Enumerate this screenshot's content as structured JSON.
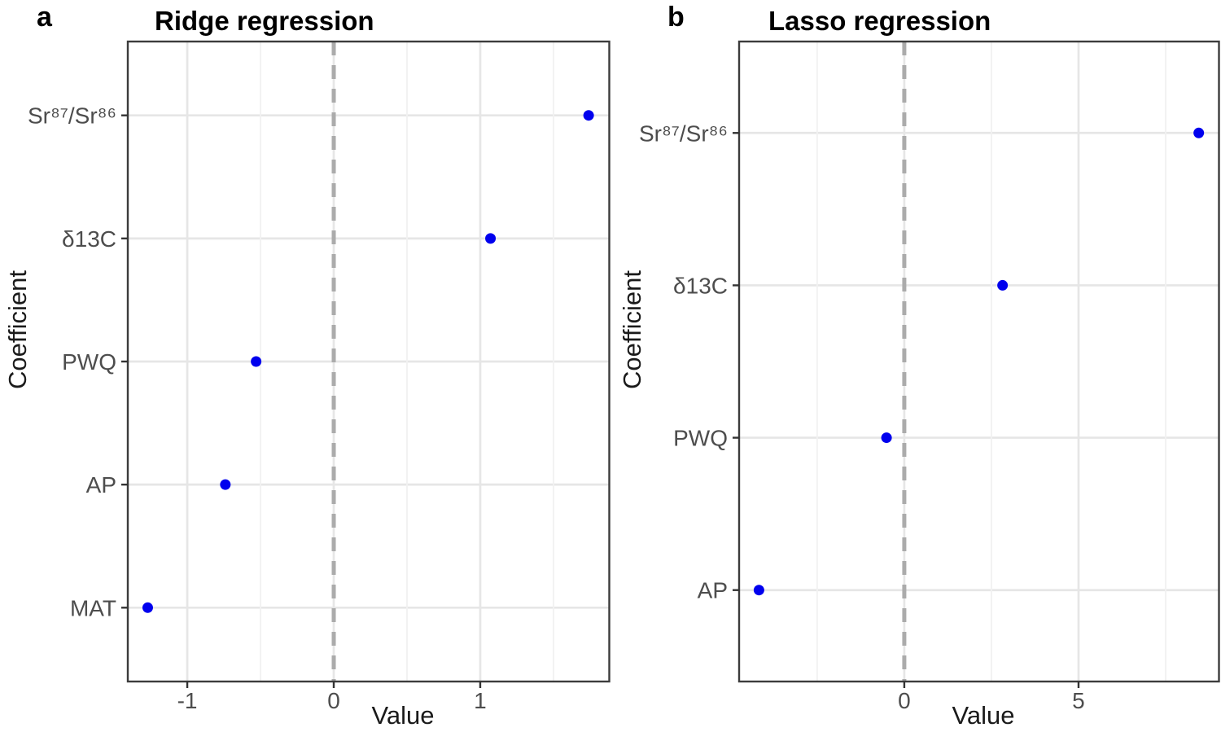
{
  "figure": {
    "panel_a_letter": "a",
    "panel_b_letter": "b"
  },
  "style": {
    "background": "#FFFFFF",
    "point_color": "#0000EE",
    "zero_line_color": "#ABABAB",
    "grid_major_color": "#E6E6E6",
    "grid_minor_color": "#F1F1F1",
    "border_color": "#3C3C3C",
    "tick_mark_color": "#333333",
    "tick_label_color": "#4D4D4D",
    "title_color": "#000000",
    "axis_label_color": "#1A1A1A"
  },
  "chart_data": [
    {
      "type": "scatter",
      "panel": "a",
      "title": "Ridge regression",
      "xlabel": "Value",
      "ylabel": "Coefficient",
      "categories": [
        "Sr⁸⁷/Sr⁸⁶",
        "δ13C",
        "PWQ",
        "AP",
        "MAT"
      ],
      "values": [
        1.74,
        1.07,
        -0.53,
        -0.74,
        -1.27
      ],
      "xlim": [
        -1.406,
        1.881
      ],
      "x_major_ticks": [
        -1,
        0,
        1
      ],
      "x_tick_labels": [
        "-1",
        "0",
        "1"
      ],
      "x_minor_ticks": [
        -0.5,
        0.5,
        1.5
      ],
      "zero_line": 0,
      "grid": true,
      "legend": "none"
    },
    {
      "type": "scatter",
      "panel": "b",
      "title": "Lasso regression",
      "xlabel": "Value",
      "ylabel": "Coefficient",
      "categories": [
        "Sr⁸⁷/Sr⁸⁶",
        "δ13C",
        "PWQ",
        "AP"
      ],
      "values": [
        8.45,
        2.82,
        -0.51,
        -4.17
      ],
      "xlim": [
        -4.74,
        9.03
      ],
      "x_major_ticks": [
        0,
        5
      ],
      "x_tick_labels": [
        "0",
        "5"
      ],
      "x_minor_ticks": [
        -2.5,
        2.5,
        7.5
      ],
      "zero_line": 0,
      "grid": true,
      "legend": "none"
    }
  ]
}
